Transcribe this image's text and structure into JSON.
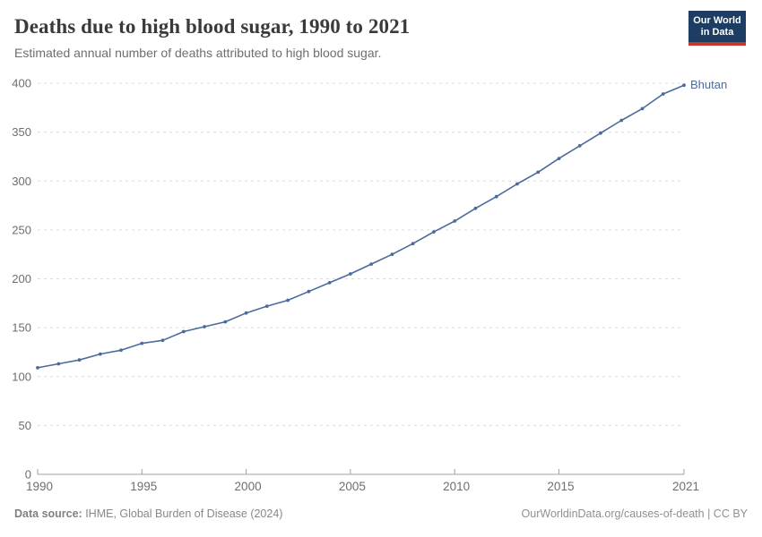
{
  "header": {
    "title": "Deaths due to high blood sugar, 1990 to 2021",
    "subtitle": "Estimated annual number of deaths attributed to high blood sugar.",
    "logo": {
      "line1": "Our World",
      "line2": "in Data",
      "bg_color": "#1d3d63",
      "accent_color": "#c0392b"
    }
  },
  "footer": {
    "source_label": "Data source:",
    "source_text": " IHME, Global Burden of Disease (2024)",
    "link_text": "OurWorldinData.org/causes-of-death",
    "license_text": " | CC BY"
  },
  "chart_data": {
    "type": "line",
    "title": "Deaths due to high blood sugar, 1990 to 2021",
    "xlabel": "",
    "ylabel": "",
    "xlim": [
      1990,
      2021
    ],
    "ylim": [
      0,
      400
    ],
    "x_ticks": [
      1990,
      1995,
      2000,
      2005,
      2010,
      2015,
      2021
    ],
    "y_ticks": [
      0,
      50,
      100,
      150,
      200,
      250,
      300,
      350,
      400
    ],
    "grid": "horizontal-dashed",
    "legend_position": "end-of-line-label",
    "axis_color": "#a1a1a1",
    "grid_color": "#dcdcdc",
    "tick_label_color": "#6e6e6e",
    "series": [
      {
        "name": "Bhutan",
        "color": "#4c6a9c",
        "x": [
          1990,
          1991,
          1992,
          1993,
          1994,
          1995,
          1996,
          1997,
          1998,
          1999,
          2000,
          2001,
          2002,
          2003,
          2004,
          2005,
          2006,
          2007,
          2008,
          2009,
          2010,
          2011,
          2012,
          2013,
          2014,
          2015,
          2016,
          2017,
          2018,
          2019,
          2020,
          2021
        ],
        "values": [
          109,
          113,
          117,
          123,
          127,
          134,
          137,
          146,
          151,
          156,
          165,
          172,
          178,
          187,
          196,
          205,
          215,
          225,
          236,
          248,
          259,
          272,
          284,
          297,
          309,
          323,
          336,
          349,
          362,
          374,
          389,
          398
        ]
      }
    ]
  }
}
